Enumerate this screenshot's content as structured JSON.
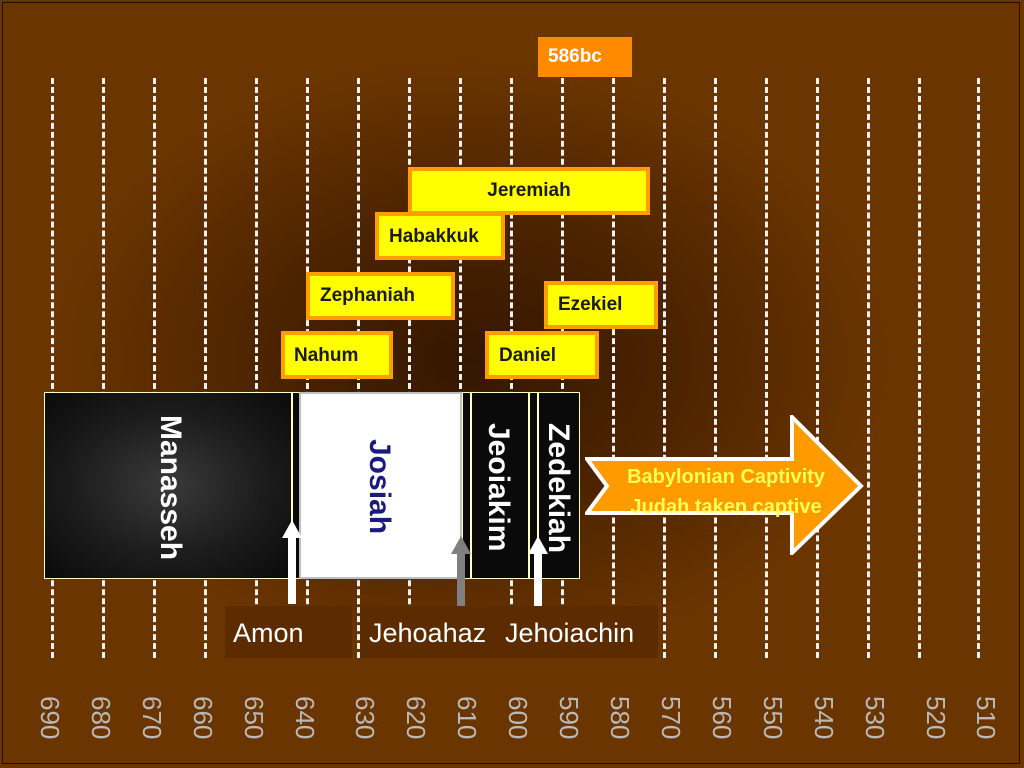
{
  "marker_label": "586bc",
  "prophets": {
    "jeremiah": "Jeremiah",
    "habakkuk": "Habakkuk",
    "zephaniah": "Zephaniah",
    "ezekiel": "Ezekiel",
    "nahum": "Nahum",
    "daniel": "Daniel"
  },
  "kings": {
    "manasseh": "Manasseh",
    "josiah": "Josiah",
    "jeoiakim": "Jeoiakim",
    "zedekiah": "Zedekiah",
    "amon": "Amon",
    "jehoahaz": "Jehoahaz",
    "jehoiachin": "Jehoiachin"
  },
  "captivity": {
    "line1": "Babylonian Captivity",
    "line2": "Judah taken captive"
  },
  "axis_ticks": [
    "690",
    "680",
    "670",
    "660",
    "650",
    "640",
    "630",
    "620",
    "610",
    "600",
    "590",
    "580",
    "570",
    "560",
    "550",
    "540",
    "530",
    "520",
    "510"
  ],
  "colors": {
    "background": "#6b3500",
    "prophet_fill": "#ffff00",
    "prophet_border": "#ff9e00",
    "captivity_arrow": "#ff9a00",
    "josiah_text": "#1a1a80"
  }
}
